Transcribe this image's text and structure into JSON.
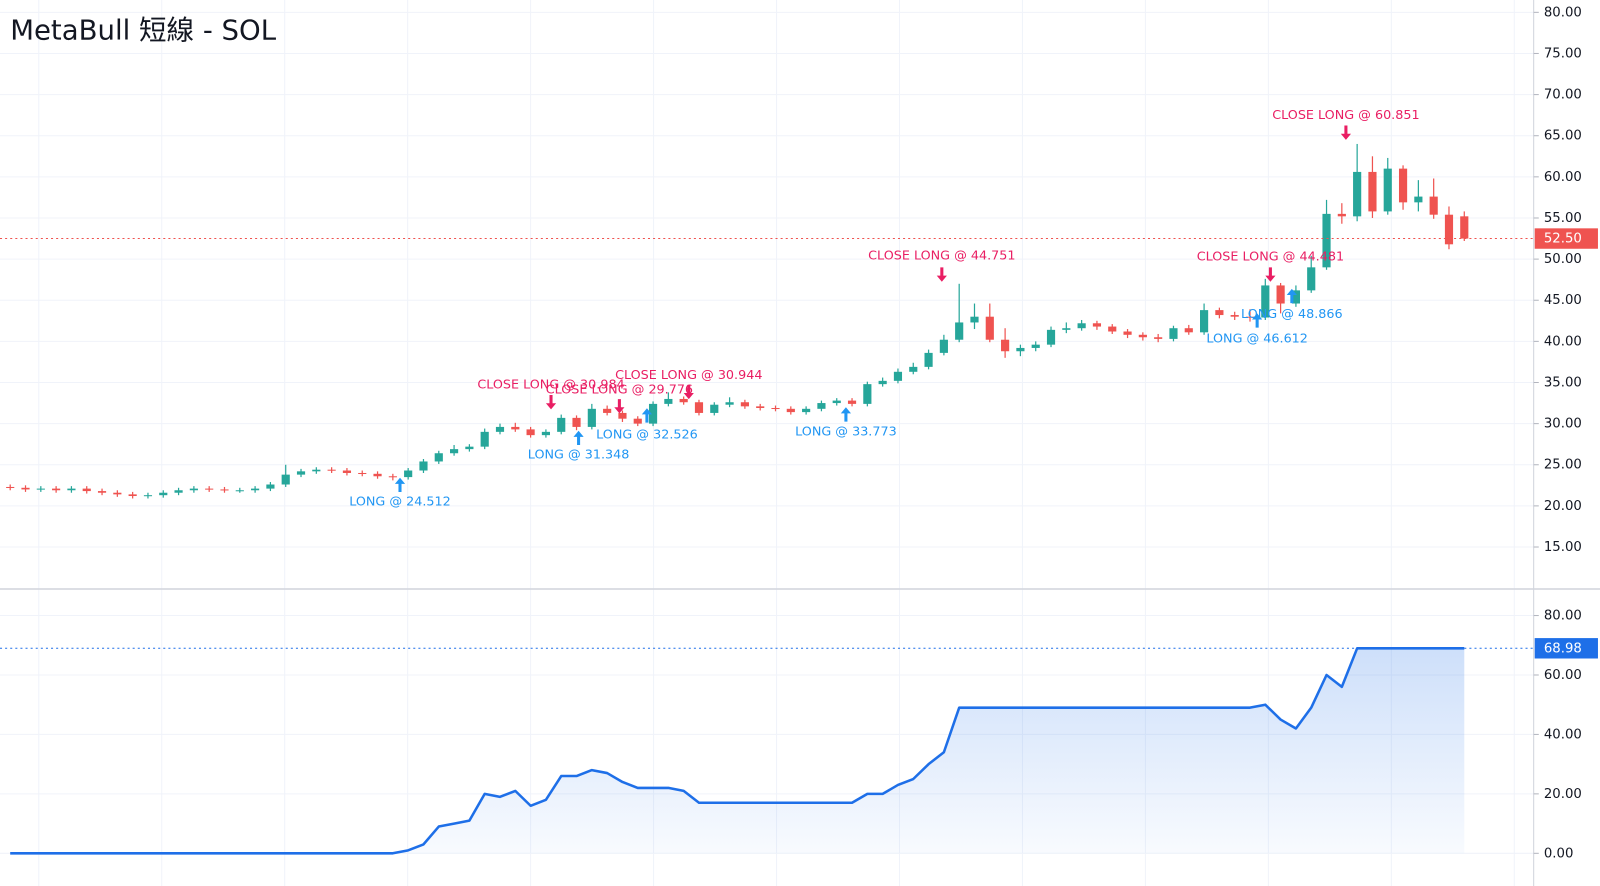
{
  "title": "MetaBull 短線 - SOL",
  "chart_data": [
    {
      "type": "candlestick",
      "up_color": "#26a69a",
      "down_color": "#ef5350",
      "grid": true,
      "ylim": [
        9.9,
        81.5
      ],
      "yticks": [
        {
          "value": 15,
          "label": "15.00"
        },
        {
          "value": 20,
          "label": "20.00"
        },
        {
          "value": 25,
          "label": "25.00"
        },
        {
          "value": 30,
          "label": "30.00"
        },
        {
          "value": 35,
          "label": "35.00"
        },
        {
          "value": 40,
          "label": "40.00"
        },
        {
          "value": 45,
          "label": "45.00"
        },
        {
          "value": 50,
          "label": "50.00"
        },
        {
          "value": 55,
          "label": "55.00"
        },
        {
          "value": 60,
          "label": "60.00"
        },
        {
          "value": 65,
          "label": "65.00"
        },
        {
          "value": 70,
          "label": "70.00"
        },
        {
          "value": 75,
          "label": "75.00"
        },
        {
          "value": 80,
          "label": "80.00"
        }
      ],
      "open": [
        22.3,
        22.2,
        22.0,
        22.1,
        21.9,
        22.1,
        21.8,
        21.6,
        21.4,
        21.2,
        21.3,
        21.6,
        21.9,
        22.1,
        22.0,
        21.9,
        21.9,
        22.1,
        22.6,
        23.8,
        24.2,
        24.4,
        24.3,
        24.0,
        23.9,
        23.6,
        23.5,
        24.3,
        25.4,
        26.4,
        26.9,
        27.2,
        29.0,
        29.6,
        29.3,
        28.6,
        29.0,
        30.7,
        29.6,
        31.8,
        31.3,
        30.6,
        30.0,
        32.4,
        33.0,
        32.6,
        31.3,
        32.3,
        32.6,
        32.1,
        31.9,
        31.8,
        31.4,
        31.8,
        32.5,
        32.8,
        32.4,
        34.8,
        35.2,
        36.3,
        36.9,
        38.6,
        40.2,
        42.3,
        43.0,
        40.2,
        38.8,
        39.2,
        39.6,
        41.4,
        41.6,
        42.2,
        41.8,
        41.2,
        40.8,
        40.5,
        40.3,
        41.6,
        41.1,
        43.8,
        43.2,
        43.0,
        42.9,
        46.8,
        44.6,
        46.2,
        49.0,
        55.5,
        55.2,
        60.6,
        55.8,
        61.0,
        56.9,
        57.6,
        55.4,
        55.2
      ],
      "high": [
        22.6,
        22.5,
        22.4,
        22.4,
        22.4,
        22.4,
        22.1,
        21.9,
        21.7,
        21.6,
        21.9,
        22.2,
        22.4,
        22.4,
        22.3,
        22.2,
        22.4,
        22.9,
        25.0,
        24.5,
        24.7,
        24.7,
        24.6,
        24.3,
        24.2,
        23.9,
        24.6,
        25.7,
        26.7,
        27.4,
        27.5,
        29.4,
        30.0,
        30.1,
        29.6,
        29.3,
        31.1,
        31.0,
        32.4,
        32.2,
        31.6,
        30.9,
        32.7,
        33.8,
        33.3,
        32.9,
        32.6,
        33.2,
        32.9,
        32.4,
        32.2,
        32.1,
        32.1,
        32.8,
        33.1,
        33.1,
        35.1,
        35.6,
        36.7,
        37.4,
        39.0,
        40.8,
        47.0,
        44.6,
        44.6,
        41.6,
        39.6,
        40.0,
        41.8,
        42.3,
        42.6,
        42.5,
        42.1,
        41.5,
        41.1,
        40.9,
        41.9,
        42.0,
        44.6,
        44.1,
        43.6,
        43.9,
        47.6,
        47.1,
        46.8,
        50.4,
        57.2,
        56.8,
        64.0,
        62.5,
        62.3,
        61.4,
        59.6,
        59.8,
        56.4,
        55.8
      ],
      "low": [
        21.9,
        21.7,
        21.7,
        21.6,
        21.6,
        21.5,
        21.3,
        21.1,
        20.9,
        20.9,
        21.0,
        21.3,
        21.6,
        21.7,
        21.6,
        21.6,
        21.6,
        21.8,
        22.3,
        23.5,
        23.9,
        24.0,
        23.7,
        23.6,
        23.3,
        23.1,
        23.2,
        24.0,
        25.1,
        26.1,
        26.6,
        26.9,
        28.7,
        29.0,
        28.3,
        28.3,
        28.7,
        29.2,
        29.3,
        31.0,
        30.2,
        29.7,
        29.7,
        32.1,
        32.3,
        31.0,
        31.0,
        32.0,
        31.8,
        31.6,
        31.5,
        31.1,
        31.1,
        31.5,
        32.2,
        32.1,
        32.1,
        34.5,
        34.9,
        36.0,
        36.6,
        38.3,
        39.9,
        41.5,
        39.9,
        38.0,
        38.2,
        38.8,
        39.3,
        41.0,
        41.3,
        41.4,
        40.9,
        40.4,
        40.1,
        39.9,
        40.0,
        40.8,
        40.8,
        42.8,
        42.6,
        42.4,
        42.6,
        43.4,
        44.2,
        45.9,
        48.7,
        54.3,
        54.6,
        55.0,
        55.4,
        56.0,
        55.8,
        54.9,
        51.2,
        52.2
      ],
      "close": [
        22.2,
        22.0,
        22.1,
        21.9,
        22.1,
        21.8,
        21.6,
        21.4,
        21.2,
        21.3,
        21.6,
        21.9,
        22.1,
        22.0,
        21.9,
        21.9,
        22.1,
        22.6,
        23.8,
        24.2,
        24.4,
        24.3,
        24.0,
        23.9,
        23.6,
        23.5,
        24.3,
        25.4,
        26.4,
        26.9,
        27.2,
        29.0,
        29.6,
        29.3,
        28.6,
        29.0,
        30.7,
        29.6,
        31.8,
        31.3,
        30.6,
        30.0,
        32.4,
        33.0,
        32.6,
        31.3,
        32.3,
        32.6,
        32.1,
        31.9,
        31.8,
        31.4,
        31.8,
        32.5,
        32.8,
        32.4,
        34.8,
        35.2,
        36.3,
        36.9,
        38.6,
        40.2,
        42.3,
        43.0,
        40.2,
        38.8,
        39.2,
        39.6,
        41.4,
        41.6,
        42.2,
        41.8,
        41.2,
        40.8,
        40.5,
        40.3,
        41.6,
        41.1,
        43.8,
        43.2,
        43.0,
        42.9,
        46.8,
        44.6,
        46.2,
        49.0,
        55.5,
        55.2,
        60.6,
        55.8,
        61.0,
        56.9,
        57.6,
        55.4,
        51.8,
        52.5
      ],
      "last_price": {
        "value": 52.5,
        "label": "52.50"
      },
      "long_labels": [
        "LONG @ 24.512",
        "LONG @ 31.348",
        "LONG @ 32.526",
        "LONG @ 33.773",
        "LONG @ 46.612",
        "LONG @ 48.866"
      ],
      "close_labels": [
        "CLOSE LONG @ 30.984",
        "CLOSE LONG @ 29.776",
        "CLOSE LONG @ 30.944",
        "CLOSE LONG @ 44.751",
        "CLOSE LONG @ 44.481",
        "CLOSE LONG @ 60.851"
      ],
      "long_color": "#2196f3",
      "close_color": "#e91e63"
    },
    {
      "type": "area",
      "color": "#1e6fe8",
      "grid": true,
      "ylim": [
        -11,
        88.6
      ],
      "yticks": [
        {
          "value": 0,
          "label": "0.00"
        },
        {
          "value": 20,
          "label": "20.00"
        },
        {
          "value": 40,
          "label": "40.00"
        },
        {
          "value": 60,
          "label": "60.00"
        },
        {
          "value": 80,
          "label": "80.00"
        }
      ],
      "values": [
        0,
        0,
        0,
        0,
        0,
        0,
        0,
        0,
        0,
        0,
        0,
        0,
        0,
        0,
        0,
        0,
        0,
        0,
        0,
        0,
        0,
        0,
        0,
        0,
        0,
        0,
        1,
        3,
        9,
        10,
        11,
        20,
        19,
        21,
        16,
        18,
        26,
        26,
        28,
        27,
        24,
        22,
        22,
        22,
        21,
        17,
        17,
        17,
        17,
        17,
        17,
        17,
        17,
        17,
        17,
        17,
        20,
        20,
        23,
        25,
        30,
        34,
        49,
        49,
        49,
        49,
        49,
        49,
        49,
        49,
        49,
        49,
        49,
        49,
        49,
        49,
        49,
        49,
        49,
        49,
        49,
        49,
        50,
        45,
        42,
        49,
        60,
        56,
        68.98,
        68.98,
        68.98,
        68.98,
        68.98,
        68.98,
        68.98,
        68.98
      ],
      "last_value": {
        "value": 68.98,
        "label": "68.98"
      }
    }
  ]
}
